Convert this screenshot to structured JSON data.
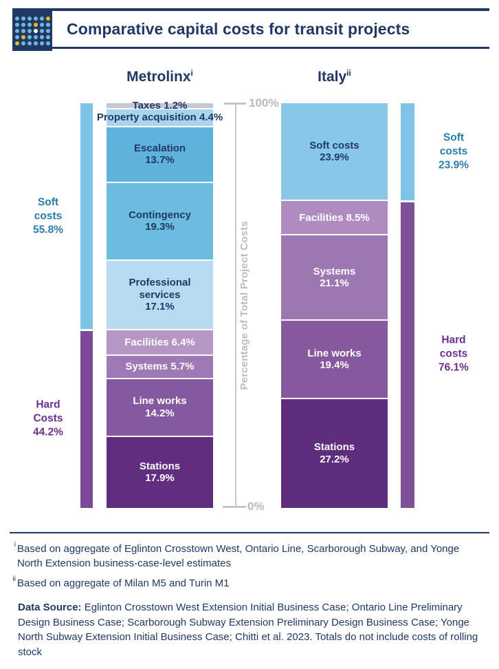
{
  "header": {
    "title": "Comparative capital costs for transit projects",
    "icon": {
      "name": "dot-grid-logo",
      "pattern": [
        "bbbbbY",
        "bbbYbb",
        "bbbWbb",
        "bYbbbb",
        "Ybbbbb"
      ],
      "colors": {
        "b": "#6fb8dd",
        "Y": "#f0b323",
        "W": "#ffffff",
        "bg": "#1f3864"
      }
    }
  },
  "chart_data": {
    "type": "bar",
    "stacked": true,
    "unit": "%",
    "ylabel": "Percentage of Total Project Costs",
    "ylim": [
      0,
      100
    ],
    "ytick_labels": [
      "100%",
      "0%"
    ],
    "grid": false,
    "bars": [
      {
        "id": "metrolinx",
        "name": "Metrolinx",
        "footnote_mark": "i",
        "segments": [
          {
            "label": "Taxes",
            "value": 1.2,
            "color": "#c7c7d4",
            "text_color": "#1f3864",
            "inline": true
          },
          {
            "label": "Property acquisition",
            "value": 4.4,
            "color": "#a9d4ee",
            "text_color": "#1f3864",
            "inline": true
          },
          {
            "label": "Escalation",
            "value": 13.7,
            "color": "#5fb2dc",
            "text_color": "#1f3864",
            "inline": false
          },
          {
            "label": "Contingency",
            "value": 19.3,
            "color": "#6cbcdf",
            "text_color": "#1f3864",
            "inline": false
          },
          {
            "label": "Professional services",
            "value": 17.1,
            "color": "#b7dcf1",
            "text_color": "#1f3864",
            "inline": false
          },
          {
            "label": "Facilities",
            "value": 6.4,
            "color": "#b696c5",
            "text_color": "#ffffff",
            "inline": true
          },
          {
            "label": "Systems",
            "value": 5.7,
            "color": "#9d79b5",
            "text_color": "#ffffff",
            "inline": true
          },
          {
            "label": "Line works",
            "value": 14.2,
            "color": "#85599f",
            "text_color": "#ffffff",
            "inline": false
          },
          {
            "label": "Stations",
            "value": 17.9,
            "color": "#612e7f",
            "text_color": "#ffffff",
            "inline": false
          }
        ],
        "summary_side": "left",
        "summary": [
          {
            "label": "Soft costs",
            "value": 55.8,
            "color": "#7fc3e6",
            "text_color": "#2b7cab"
          },
          {
            "label": "Hard Costs",
            "value": 44.2,
            "color": "#7c4a99",
            "text_color": "#6c2f8f"
          }
        ]
      },
      {
        "id": "italy",
        "name": "Italy",
        "footnote_mark": "ii",
        "segments": [
          {
            "label": "Soft costs",
            "value": 23.9,
            "color": "#89c7e8",
            "text_color": "#1f3864",
            "inline": false
          },
          {
            "label": "Facilities",
            "value": 8.5,
            "color": "#af8bc0",
            "text_color": "#ffffff",
            "inline": true
          },
          {
            "label": "Systems",
            "value": 21.1,
            "color": "#9c78b3",
            "text_color": "#ffffff",
            "inline": false
          },
          {
            "label": "Line works",
            "value": 19.4,
            "color": "#86599f",
            "text_color": "#ffffff",
            "inline": false
          },
          {
            "label": "Stations",
            "value": 27.2,
            "color": "#5f2d7d",
            "text_color": "#ffffff",
            "inline": false
          }
        ],
        "summary_side": "right",
        "summary": [
          {
            "label": "Soft costs",
            "value": 23.9,
            "color": "#7fc3e6",
            "text_color": "#2b7cab"
          },
          {
            "label": "Hard costs",
            "value": 76.1,
            "color": "#7e5098",
            "text_color": "#6c2f8f"
          }
        ]
      }
    ]
  },
  "footnotes": [
    {
      "mark": "i",
      "text": "Based on aggregate of Eglinton Crosstown West, Ontario Line, Scarborough Subway, and Yonge North Extension business-case-level estimates"
    },
    {
      "mark": "ii",
      "text": "Based on aggregate of Milan M5 and Turin M1"
    }
  ],
  "data_source": {
    "label": "Data Source:",
    "text": "Eglinton Crosstown West Extension Initial Business Case; Ontario Line Preliminary Design Business Case; Scarborough Subway Extension Preliminary Design Business Case; Yonge North Subway Extension Initial Business Case; Chitti et al. 2023. Totals do not include costs of rolling stock"
  },
  "colors": {
    "navy": "#1f3864",
    "axis_gray": "#c6c6ca",
    "soft_label": "#2b7cab",
    "hard_label": "#6c2f8f"
  }
}
